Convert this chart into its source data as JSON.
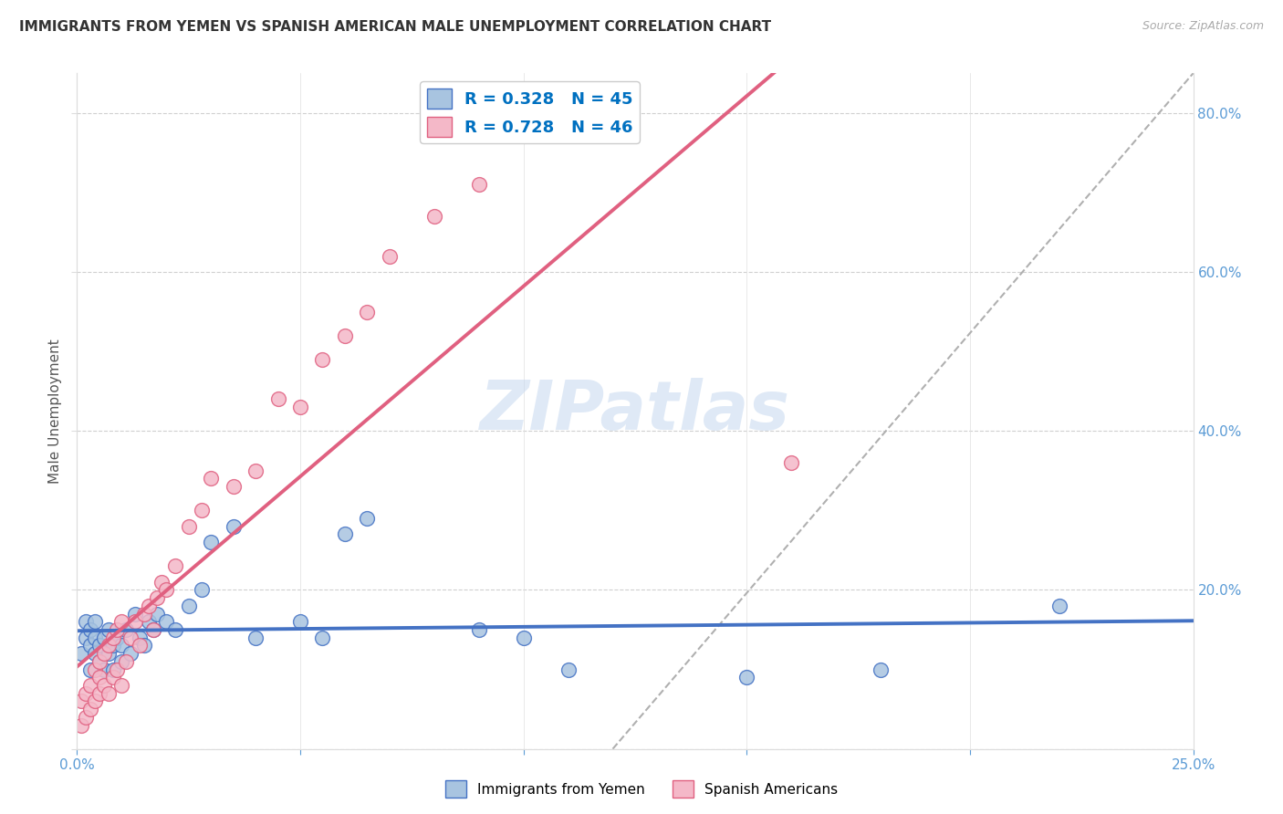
{
  "title": "IMMIGRANTS FROM YEMEN VS SPANISH AMERICAN MALE UNEMPLOYMENT CORRELATION CHART",
  "source": "Source: ZipAtlas.com",
  "ylabel": "Male Unemployment",
  "legend_blue_R": "0.328",
  "legend_blue_N": "45",
  "legend_pink_R": "0.728",
  "legend_pink_N": "46",
  "blue_color": "#a8c4e0",
  "blue_line_color": "#4472c4",
  "pink_color": "#f4b8c8",
  "pink_line_color": "#e06080",
  "blue_scatter_x": [
    0.001,
    0.002,
    0.002,
    0.003,
    0.003,
    0.003,
    0.004,
    0.004,
    0.004,
    0.005,
    0.005,
    0.006,
    0.006,
    0.007,
    0.007,
    0.008,
    0.008,
    0.009,
    0.01,
    0.01,
    0.011,
    0.012,
    0.013,
    0.014,
    0.015,
    0.016,
    0.017,
    0.018,
    0.02,
    0.022,
    0.025,
    0.028,
    0.03,
    0.035,
    0.04,
    0.05,
    0.055,
    0.06,
    0.065,
    0.09,
    0.1,
    0.11,
    0.15,
    0.18,
    0.22
  ],
  "blue_scatter_y": [
    0.12,
    0.14,
    0.16,
    0.1,
    0.13,
    0.15,
    0.12,
    0.14,
    0.16,
    0.11,
    0.13,
    0.1,
    0.14,
    0.12,
    0.15,
    0.1,
    0.13,
    0.14,
    0.11,
    0.13,
    0.15,
    0.12,
    0.17,
    0.14,
    0.13,
    0.16,
    0.15,
    0.17,
    0.16,
    0.15,
    0.18,
    0.2,
    0.26,
    0.28,
    0.14,
    0.16,
    0.14,
    0.27,
    0.29,
    0.15,
    0.14,
    0.1,
    0.09,
    0.1,
    0.18
  ],
  "pink_scatter_x": [
    0.001,
    0.001,
    0.002,
    0.002,
    0.003,
    0.003,
    0.004,
    0.004,
    0.005,
    0.005,
    0.005,
    0.006,
    0.006,
    0.007,
    0.007,
    0.008,
    0.008,
    0.009,
    0.009,
    0.01,
    0.01,
    0.011,
    0.012,
    0.013,
    0.014,
    0.015,
    0.016,
    0.017,
    0.018,
    0.019,
    0.02,
    0.022,
    0.025,
    0.028,
    0.03,
    0.035,
    0.04,
    0.045,
    0.05,
    0.055,
    0.06,
    0.065,
    0.07,
    0.08,
    0.09,
    0.16
  ],
  "pink_scatter_y": [
    0.03,
    0.06,
    0.04,
    0.07,
    0.05,
    0.08,
    0.06,
    0.1,
    0.07,
    0.09,
    0.11,
    0.08,
    0.12,
    0.07,
    0.13,
    0.09,
    0.14,
    0.1,
    0.15,
    0.08,
    0.16,
    0.11,
    0.14,
    0.16,
    0.13,
    0.17,
    0.18,
    0.15,
    0.19,
    0.21,
    0.2,
    0.23,
    0.28,
    0.3,
    0.34,
    0.33,
    0.35,
    0.44,
    0.43,
    0.49,
    0.52,
    0.55,
    0.62,
    0.67,
    0.71,
    0.36
  ],
  "watermark": "ZIPatlas",
  "xlim": [
    0.0,
    0.25
  ],
  "ylim": [
    0.0,
    0.85
  ],
  "dashed_line_x1": 0.12,
  "dashed_line_y1": 0.0,
  "dashed_line_x2": 0.25,
  "dashed_line_y2": 0.85
}
